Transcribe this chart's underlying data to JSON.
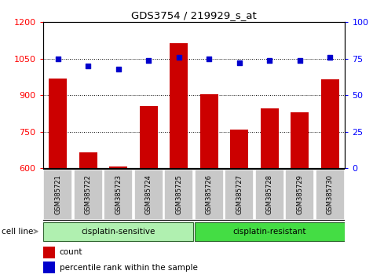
{
  "title": "GDS3754 / 219929_s_at",
  "samples": [
    "GSM385721",
    "GSM385722",
    "GSM385723",
    "GSM385724",
    "GSM385725",
    "GSM385726",
    "GSM385727",
    "GSM385728",
    "GSM385729",
    "GSM385730"
  ],
  "counts": [
    970,
    665,
    608,
    855,
    1115,
    905,
    760,
    845,
    830,
    965
  ],
  "percentile_ranks": [
    75,
    70,
    68,
    74,
    76,
    75,
    72,
    74,
    74,
    76
  ],
  "ylim_left": [
    600,
    1200
  ],
  "ylim_right": [
    0,
    100
  ],
  "yticks_left": [
    600,
    750,
    900,
    1050,
    1200
  ],
  "yticks_right": [
    0,
    25,
    50,
    75,
    100
  ],
  "bar_color": "#cc0000",
  "dot_color": "#0000cc",
  "gridlines_at": [
    750,
    900,
    1050
  ],
  "sensitive_color": "#b0f0b0",
  "resistant_color": "#44dd44",
  "tick_box_color": "#c8c8c8",
  "n_sensitive": 5,
  "n_resistant": 5
}
